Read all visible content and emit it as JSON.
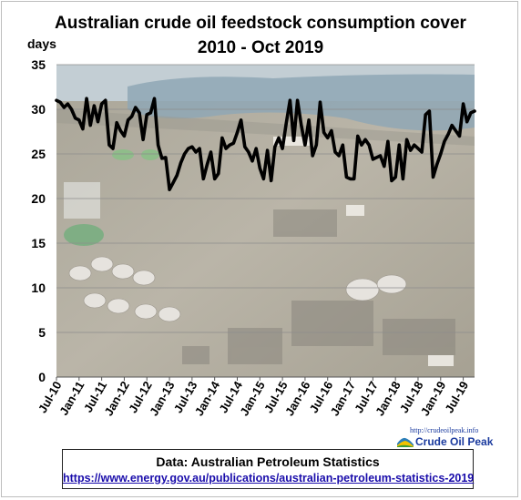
{
  "chart_data": {
    "type": "line",
    "title_line1": "Australian crude oil feedstock consumption cover",
    "title_line2": "2010 - Oct 2019",
    "ylabel": "days",
    "ylim": [
      0,
      35
    ],
    "yticks": [
      0,
      5,
      10,
      15,
      20,
      25,
      30,
      35
    ],
    "xticks": [
      "Jul-10",
      "Jan-11",
      "Jul-11",
      "Jan-12",
      "Jul-12",
      "Jan-13",
      "Jul-13",
      "Jan-14",
      "Jul-14",
      "Jan-15",
      "Jul-15",
      "Jan-16",
      "Jul-16",
      "Jan-17",
      "Jul-17",
      "Jan-18",
      "Jul-18",
      "Jan-19",
      "Jul-19"
    ],
    "grid": true,
    "line_color": "#000000",
    "background": "refinery photo",
    "series": [
      {
        "start": "Jul-10",
        "values": [
          31.0,
          30.8,
          30.2,
          30.6,
          30.0,
          29.0,
          28.8,
          27.8,
          31.2,
          28.2,
          30.4,
          28.6,
          30.6,
          31.0,
          26.0,
          25.6,
          28.5,
          27.6,
          27.0,
          28.8,
          29.2,
          30.2,
          29.6,
          26.6,
          29.4,
          29.6,
          31.2,
          26.0,
          24.5,
          24.6,
          21.0,
          21.8,
          22.6,
          24.0,
          25.0,
          25.6,
          25.8,
          25.2,
          25.6,
          22.2,
          23.8,
          25.2,
          22.2,
          22.8,
          26.8,
          25.6,
          26.0,
          26.2,
          27.4,
          28.8,
          25.8,
          25.2,
          24.2,
          25.6,
          23.4,
          22.2,
          25.4,
          22.0,
          25.8,
          26.8,
          25.6,
          28.4,
          31.0,
          26.5,
          31.0,
          28.2,
          26.0,
          28.8,
          24.8,
          26.0,
          30.8,
          27.4,
          26.8,
          27.6,
          25.2,
          24.8,
          26.0,
          22.4,
          22.2,
          22.2,
          27.0,
          26.0,
          26.6,
          26.0,
          24.4,
          24.6,
          24.8,
          23.6,
          26.4,
          22.0,
          22.4,
          26.0,
          22.2,
          26.6,
          25.4,
          26.0,
          25.6,
          25.2,
          29.4,
          29.8,
          22.4,
          23.8,
          25.0,
          26.4,
          27.2,
          28.2,
          27.6,
          27.0,
          30.6,
          28.6,
          29.6,
          29.8
        ]
      }
    ]
  },
  "footer": {
    "source_title": "Data: Australian Petroleum Statistics",
    "source_url": "https://www.energy.gov.au/publications/australian-petroleum-statistics-2019"
  },
  "logo": {
    "url": "http://crudeoilpeak.info",
    "name": "Crude Oil Peak"
  }
}
